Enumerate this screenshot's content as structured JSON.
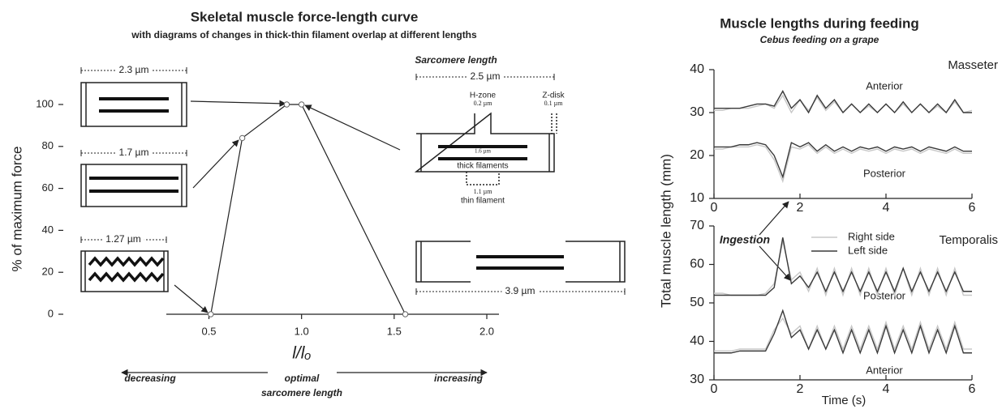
{
  "chart_data": [
    {
      "type": "line",
      "title": "Skeletal muscle force-length curve",
      "subtitle": "with diagrams of changes in thick-thin filament overlap at different lengths",
      "ylabel": "% of maximum force",
      "xlabel": "l/lₒ",
      "x": [
        0.51,
        0.68,
        0.92,
        1.0,
        1.56
      ],
      "values": [
        0,
        84,
        100,
        100,
        0
      ],
      "color": "#222222",
      "xlim": [
        0.27,
        2.0
      ],
      "ylim": [
        0,
        100
      ],
      "xticks": [
        0.5,
        {
          "value": 1,
          "label": "1.0"
        },
        1.5,
        {
          "value": 2,
          "label": "2.0"
        }
      ],
      "yticks": [
        0,
        20,
        40,
        60,
        80,
        100
      ],
      "bottom_labels": [
        "decreasing",
        "optimal",
        "sarcomere length",
        "increasing"
      ],
      "diagram_labels": [
        "2.3 µm",
        "1.7 µm",
        "1.27 µm",
        "Sarcomere length",
        "2.5 µm",
        "H-zone",
        "0.2 µm",
        "Z-disk",
        "0.1 µm",
        "1.6 µm",
        "thick filaments",
        "1.1 µm",
        "thin filament",
        "3.9 µm"
      ]
    },
    {
      "type": "line",
      "title": "Muscle lengths during feeding",
      "subtitle": "Cebus feeding on a grape",
      "ylabel": "Total muscle length (mm)",
      "panel_title": "Masseter",
      "annotation": "Ingestion",
      "xlim": [
        0,
        6
      ],
      "ylim": [
        10,
        40
      ],
      "xticks": [
        0,
        2,
        4,
        6
      ],
      "yticks": [
        10,
        20,
        30,
        40
      ],
      "x": [
        0,
        0.2,
        0.4,
        0.6,
        0.8,
        1,
        1.2,
        1.4,
        1.6,
        1.8,
        2,
        2.2,
        2.4,
        2.6,
        2.8,
        3,
        3.2,
        3.4,
        3.6,
        3.8,
        4,
        4.2,
        4.4,
        4.6,
        4.8,
        5,
        5.2,
        5.4,
        5.6,
        5.8,
        6
      ],
      "groups": [
        {
          "label": "Anterior",
          "series": [
            {
              "color": "#c8c8c8",
              "values": [
                30.5,
                30.5,
                31,
                31,
                31,
                31.5,
                32,
                31,
                34,
                30,
                33,
                30.5,
                33.5,
                30.5,
                32.5,
                30,
                32,
                30,
                31.5,
                30,
                32,
                30,
                32,
                30,
                32,
                30,
                31.5,
                30,
                32.5,
                30,
                30.5
              ]
            },
            {
              "color": "#3a3a3a",
              "values": [
                31,
                31,
                31,
                31,
                31.5,
                32,
                32,
                31.5,
                35,
                31,
                33,
                30,
                34,
                31,
                33,
                30,
                32,
                30,
                32,
                30,
                32,
                30,
                32.5,
                30,
                32,
                30,
                32,
                30,
                33,
                30,
                30
              ]
            }
          ]
        },
        {
          "label": "Posterior",
          "series": [
            {
              "color": "#c8c8c8",
              "values": [
                21.5,
                21.5,
                22,
                22,
                22,
                22.5,
                22,
                19,
                14,
                22,
                21.5,
                22.5,
                20.5,
                22,
                20.5,
                21.5,
                20.5,
                21.5,
                21,
                21.5,
                20.5,
                21.5,
                21,
                21.5,
                20.5,
                21.5,
                21,
                20.5,
                21.5,
                20.5,
                20.5
              ]
            },
            {
              "color": "#3a3a3a",
              "values": [
                22,
                22,
                22,
                22.5,
                22.5,
                23,
                22.5,
                20,
                15,
                23,
                22,
                23,
                21,
                22.5,
                21,
                22,
                21,
                22,
                21.5,
                22,
                21,
                22,
                21.5,
                22,
                21,
                22,
                21.5,
                21,
                22,
                21,
                21
              ]
            }
          ]
        }
      ]
    },
    {
      "type": "line",
      "panel_title": "Temporalis",
      "xlabel": "Time (s)",
      "xlim": [
        0,
        6
      ],
      "ylim": [
        30,
        70
      ],
      "xticks": [
        0,
        2,
        4,
        6
      ],
      "yticks": [
        30,
        40,
        50,
        60,
        70
      ],
      "sides": [
        {
          "name": "Right side",
          "color": "#c8c8c8"
        },
        {
          "name": "Left side",
          "color": "#3a3a3a"
        }
      ],
      "x": [
        0,
        0.2,
        0.4,
        0.6,
        0.8,
        1,
        1.2,
        1.4,
        1.6,
        1.8,
        2,
        2.2,
        2.4,
        2.6,
        2.8,
        3,
        3.2,
        3.4,
        3.6,
        3.8,
        4,
        4.2,
        4.4,
        4.6,
        4.8,
        5,
        5.2,
        5.4,
        5.6,
        5.8,
        6
      ],
      "groups": [
        {
          "label": "Posterior",
          "series": [
            {
              "color": "#c8c8c8",
              "values": [
                52.5,
                52.5,
                52,
                52,
                52,
                52,
                52.5,
                55,
                66,
                56,
                58,
                53,
                59,
                52,
                59,
                52,
                59,
                52,
                59,
                52,
                59,
                52,
                59,
                52,
                59,
                52,
                59,
                52,
                59,
                52,
                52
              ]
            },
            {
              "color": "#3a3a3a",
              "values": [
                52,
                52,
                52,
                52,
                52,
                52,
                52,
                54,
                67,
                55,
                57,
                54,
                58,
                53,
                58,
                53,
                58,
                53,
                58,
                53,
                58,
                53,
                59,
                53,
                58,
                53,
                58,
                53,
                58,
                53,
                53
              ]
            }
          ]
        },
        {
          "label": "Anterior",
          "series": [
            {
              "color": "#c8c8c8",
              "values": [
                37.5,
                37.5,
                37.5,
                38,
                38,
                38,
                38,
                43,
                46,
                42,
                44,
                38,
                44,
                38,
                44,
                38,
                44,
                38,
                44,
                38,
                45,
                38,
                44,
                38,
                45,
                38,
                44,
                38,
                45,
                38,
                38
              ]
            },
            {
              "color": "#3a3a3a",
              "values": [
                37,
                37,
                37,
                37.5,
                37.5,
                37.5,
                37.5,
                42,
                48,
                41,
                43,
                38,
                43,
                38,
                43,
                37,
                43,
                37,
                43,
                37,
                44,
                37,
                43,
                37,
                44,
                37,
                43,
                37,
                44,
                37,
                37
              ]
            }
          ]
        }
      ]
    }
  ]
}
